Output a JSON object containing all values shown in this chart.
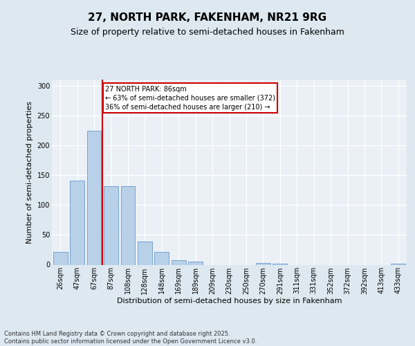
{
  "title1": "27, NORTH PARK, FAKENHAM, NR21 9RG",
  "title2": "Size of property relative to semi-detached houses in Fakenham",
  "xlabel": "Distribution of semi-detached houses by size in Fakenham",
  "ylabel": "Number of semi-detached properties",
  "annotation_title": "27 NORTH PARK: 86sqm",
  "annotation_line1": "← 63% of semi-detached houses are smaller (372)",
  "annotation_line2": "36% of semi-detached houses are larger (210) →",
  "footer": "Contains HM Land Registry data © Crown copyright and database right 2025.\nContains public sector information licensed under the Open Government Licence v3.0.",
  "categories": [
    "26sqm",
    "47sqm",
    "67sqm",
    "87sqm",
    "108sqm",
    "128sqm",
    "148sqm",
    "169sqm",
    "189sqm",
    "209sqm",
    "230sqm",
    "250sqm",
    "270sqm",
    "291sqm",
    "311sqm",
    "331sqm",
    "352sqm",
    "372sqm",
    "392sqm",
    "413sqm",
    "433sqm"
  ],
  "values": [
    22,
    141,
    224,
    132,
    132,
    39,
    22,
    8,
    5,
    0,
    0,
    0,
    3,
    2,
    0,
    0,
    0,
    0,
    0,
    0,
    2
  ],
  "bar_color": "#b8d0e8",
  "bar_edge_color": "#6699cc",
  "vline_color": "#cc0000",
  "vline_x": 2.5,
  "annotation_box_color": "#cc0000",
  "ylim": [
    0,
    310
  ],
  "yticks": [
    0,
    50,
    100,
    150,
    200,
    250,
    300
  ],
  "bg_color": "#dde8f0",
  "plot_bg_color": "#eaf0f6",
  "title1_fontsize": 11,
  "title2_fontsize": 9,
  "annotation_fontsize": 7,
  "tick_fontsize": 7,
  "ylabel_fontsize": 8,
  "xlabel_fontsize": 8,
  "footer_fontsize": 6
}
